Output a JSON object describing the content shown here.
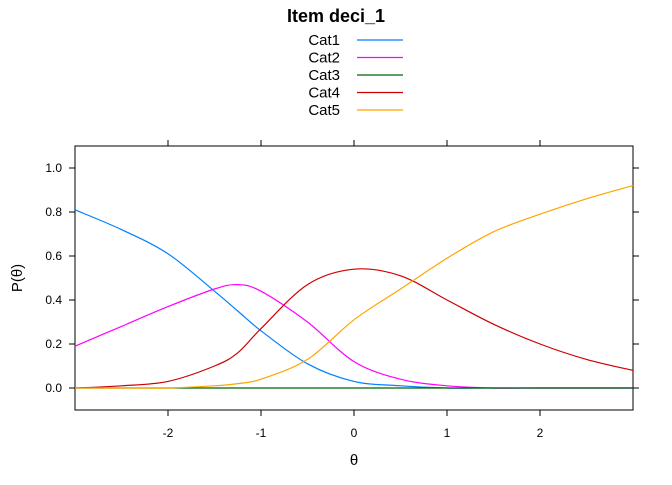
{
  "chart_data": {
    "type": "line",
    "title": "Item deci_1",
    "xlabel": "θ",
    "ylabel": "P(θ)",
    "xlim": [
      -3,
      3
    ],
    "ylim": [
      -0.1,
      1.1
    ],
    "x_ticks": [
      -2,
      -1,
      0,
      1,
      2
    ],
    "y_ticks": [
      0.0,
      0.2,
      0.4,
      0.6,
      0.8,
      1.0
    ],
    "x_tick_labels": [
      "-2",
      "-1",
      "0",
      "1",
      "2"
    ],
    "y_tick_labels": [
      "0.0",
      "0.2",
      "0.4",
      "0.6",
      "0.8",
      "1.0"
    ],
    "grid": false,
    "legend_position": "top",
    "x": [
      -3,
      -2.5,
      -2,
      -1.5,
      -1.25,
      -1,
      -0.5,
      0,
      0.5,
      1,
      1.5,
      2,
      2.5,
      3
    ],
    "series": [
      {
        "name": "Cat1",
        "color": "#0080ff",
        "values": [
          0.81,
          0.72,
          0.61,
          0.44,
          0.35,
          0.26,
          0.11,
          0.03,
          0.01,
          0.0,
          0.0,
          0.0,
          0.0,
          0.0
        ]
      },
      {
        "name": "Cat2",
        "color": "#ff00ff",
        "values": [
          0.19,
          0.28,
          0.37,
          0.45,
          0.47,
          0.44,
          0.3,
          0.12,
          0.04,
          0.01,
          0.0,
          0.0,
          0.0,
          0.0
        ]
      },
      {
        "name": "Cat3",
        "color": "#006400",
        "values": [
          0.0,
          0.0,
          0.0,
          0.0,
          0.0,
          0.0,
          0.0,
          0.0,
          0.0,
          0.0,
          0.0,
          0.0,
          0.0,
          0.0
        ]
      },
      {
        "name": "Cat4",
        "color": "#cc0000",
        "values": [
          0.0,
          0.01,
          0.03,
          0.1,
          0.16,
          0.27,
          0.47,
          0.54,
          0.51,
          0.4,
          0.29,
          0.2,
          0.13,
          0.08
        ]
      },
      {
        "name": "Cat5",
        "color": "#ffa500",
        "values": [
          0.0,
          0.0,
          0.0,
          0.01,
          0.02,
          0.04,
          0.13,
          0.31,
          0.45,
          0.59,
          0.71,
          0.79,
          0.86,
          0.92
        ]
      }
    ]
  }
}
